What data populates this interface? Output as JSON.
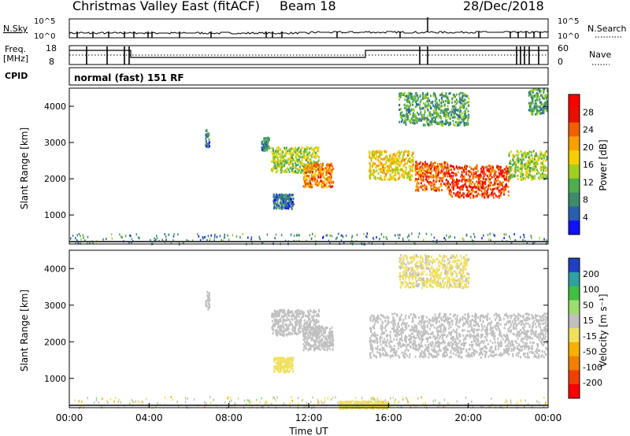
{
  "header": {
    "title": "Christmas Valley East (fitACF)",
    "beam": "Beam 18",
    "date": "28/Dec/2018"
  },
  "panels": {
    "nsky": {
      "label": "N.Sky",
      "right_label": "N.Search",
      "ticks_left": [
        "10^5",
        "10^0"
      ],
      "ticks_right": [
        "10^5",
        "10^0"
      ]
    },
    "freq": {
      "label_line1": "Freq.",
      "label_line2": "[MHz]",
      "right_label": "Nave",
      "ticks_left": [
        "18",
        "8"
      ],
      "ticks_right": [
        "60",
        "0"
      ]
    },
    "cpid": {
      "label": "CPID",
      "text": "normal (fast) 151 RF"
    }
  },
  "colors": {
    "power_scale": [
      "#1010ff",
      "#2a5fae",
      "#3e8a6a",
      "#4fae4f",
      "#9fd020",
      "#f5d000",
      "#f8a000",
      "#f06000",
      "#e81000",
      "#ff0000"
    ],
    "velocity_scale": [
      "#ff0000",
      "#f04000",
      "#f08000",
      "#f8b000",
      "#f0e060",
      "#c0c0c0",
      "#9ddc70",
      "#40c040",
      "#30a0a0",
      "#2040c0"
    ],
    "ground": "#c0c0c0"
  },
  "chart_data": [
    {
      "type": "heatmap",
      "name": "Power",
      "ylabel": "Slant Range [km]",
      "ylim": [
        200,
        4500
      ],
      "yticks": [
        "1000",
        "2000",
        "3000",
        "4000"
      ],
      "colorbar": {
        "label": "Power [dB]",
        "ticks": [
          "28",
          "24",
          "20",
          "16",
          "12",
          "8",
          "4"
        ],
        "range": [
          0,
          32
        ]
      },
      "echo_regions": [
        {
          "t": [
            6.8,
            7.0
          ],
          "r": [
            2900,
            3400
          ],
          "v": 6
        },
        {
          "t": [
            9.6,
            10.0
          ],
          "r": [
            2800,
            3200
          ],
          "v": 8
        },
        {
          "t": [
            10.1,
            12.5
          ],
          "r": [
            2200,
            2900
          ],
          "v": 14
        },
        {
          "t": [
            11.7,
            13.2
          ],
          "r": [
            1800,
            2450
          ],
          "v": 22
        },
        {
          "t": [
            10.2,
            11.2
          ],
          "r": [
            1200,
            1600
          ],
          "v": 6
        },
        {
          "t": [
            15.0,
            17.2
          ],
          "r": [
            2000,
            2800
          ],
          "v": 18
        },
        {
          "t": [
            17.3,
            19.0
          ],
          "r": [
            1700,
            2500
          ],
          "v": 24
        },
        {
          "t": [
            19.0,
            22.0
          ],
          "r": [
            1500,
            2400
          ],
          "v": 26
        },
        {
          "t": [
            22.0,
            23.9
          ],
          "r": [
            2000,
            2800
          ],
          "v": 14
        },
        {
          "t": [
            16.5,
            20.0
          ],
          "r": [
            3500,
            4400
          ],
          "v": 10
        },
        {
          "t": [
            23.0,
            23.95
          ],
          "r": [
            3800,
            4500
          ],
          "v": 10
        }
      ]
    },
    {
      "type": "heatmap",
      "name": "Velocity",
      "ylabel": "Slant Range [km]",
      "ylim": [
        200,
        4500
      ],
      "yticks": [
        "1000",
        "2000",
        "3000",
        "4000"
      ],
      "xlabel": "Time UT",
      "xticks": [
        "00:00",
        "04:00",
        "08:00",
        "12:00",
        "16:00",
        "20:00",
        "00:00"
      ],
      "xlim": [
        0,
        24
      ],
      "colorbar": {
        "label": "Velocity [m s⁻¹]",
        "ticks": [
          "200",
          "100",
          "50",
          "15",
          "-15",
          "-50",
          "-100",
          "-200"
        ],
        "range": [
          -250,
          250
        ]
      },
      "echo_regions": [
        {
          "t": [
            6.8,
            7.0
          ],
          "r": [
            2900,
            3400
          ],
          "v": 0
        },
        {
          "t": [
            10.1,
            12.5
          ],
          "r": [
            2200,
            2900
          ],
          "v": 0
        },
        {
          "t": [
            11.7,
            13.2
          ],
          "r": [
            1800,
            2450
          ],
          "v": 30
        },
        {
          "t": [
            10.2,
            11.2
          ],
          "r": [
            1200,
            1600
          ],
          "v": -40
        },
        {
          "t": [
            15.0,
            23.9
          ],
          "r": [
            1600,
            2800
          ],
          "v": 0
        },
        {
          "t": [
            16.5,
            20.0
          ],
          "r": [
            3500,
            4400
          ],
          "v": -20
        },
        {
          "t": [
            13.5,
            16.0
          ],
          "r": [
            200,
            400
          ],
          "v": -40
        }
      ]
    }
  ]
}
